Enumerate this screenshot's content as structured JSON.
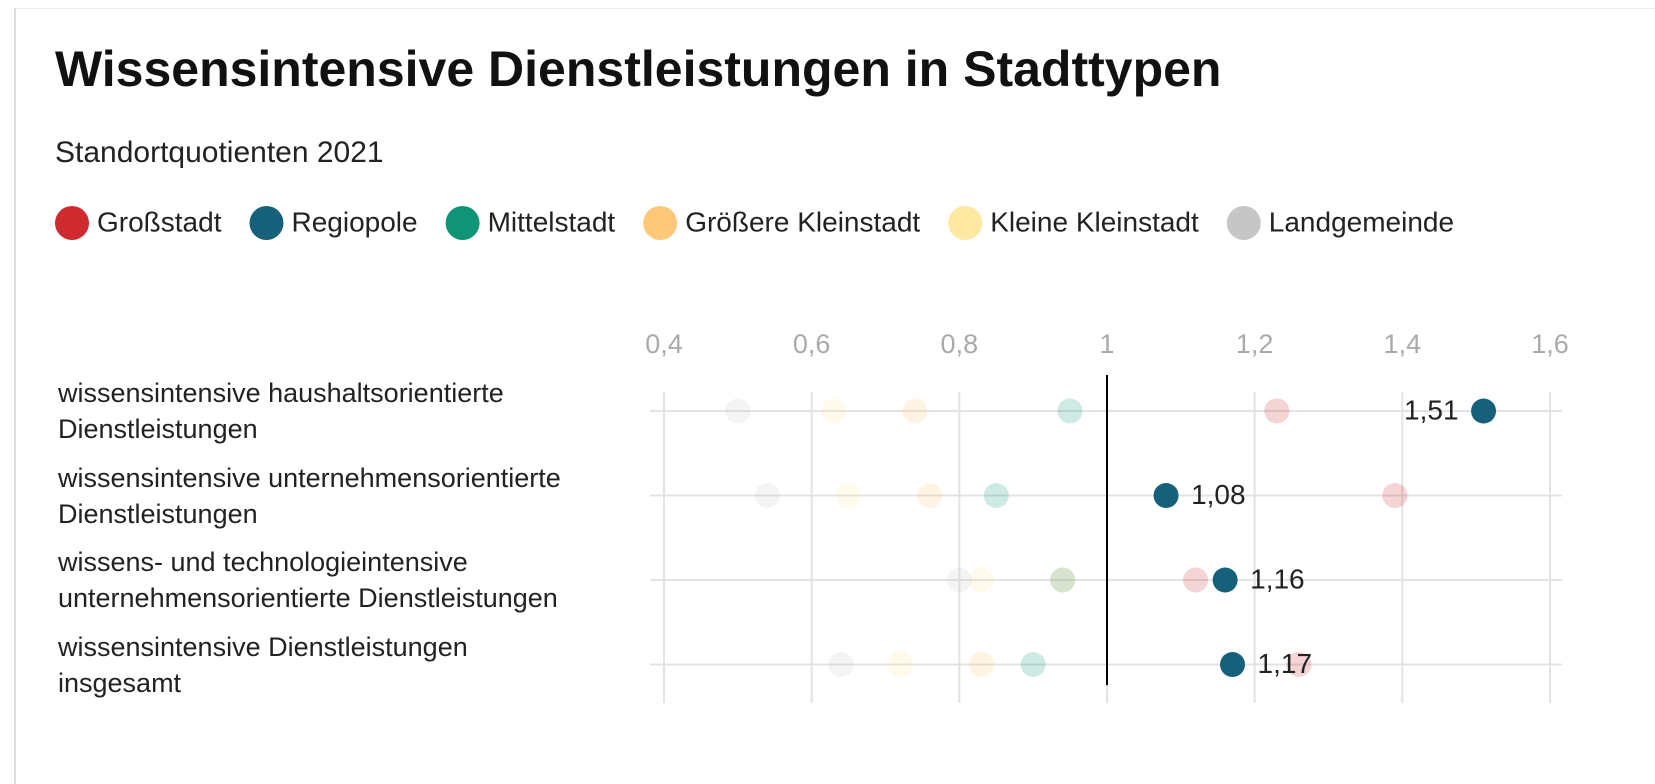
{
  "chart_data": {
    "type": "dot",
    "title": "Wissensintensive Dienstleistungen in Stadttypen",
    "subtitle": "Standortquotienten 2021",
    "categories": [
      "wissensintensive haushaltsorientierte\nDienstleistungen",
      "wissensintensive unternehmensorientierte\nDienstleistungen",
      "wissens- und technologieintensive\nunternehmensorientierte Dienstleistungen",
      "wissensintensive Dienstleistungen\ninsgesamt"
    ],
    "series": [
      {
        "name": "Großstadt",
        "color": "#cf2a2e",
        "opacity": 0.2,
        "values": [
          1.23,
          1.39,
          1.12,
          1.26
        ]
      },
      {
        "name": "Regiopole",
        "color": "#17607a",
        "opacity": 1,
        "values": [
          1.51,
          1.08,
          1.16,
          1.17
        ],
        "value_labels": [
          "1,51",
          "1,08",
          "1,16",
          "1,17"
        ]
      },
      {
        "name": "Mittelstadt",
        "color": "#109478",
        "opacity": 0.2,
        "values": [
          0.95,
          0.85,
          0.94,
          0.9
        ]
      },
      {
        "name": "Größere Kleinstadt",
        "color": "#fdc877",
        "opacity": 0.2,
        "values": [
          0.74,
          0.76,
          0.94,
          0.83
        ]
      },
      {
        "name": "Kleine Kleinstadt",
        "color": "#fee8a2",
        "opacity": 0.2,
        "values": [
          0.63,
          0.65,
          0.83,
          0.72
        ]
      },
      {
        "name": "Landgemeinde",
        "color": "#c6c6c6",
        "opacity": 0.2,
        "values": [
          0.5,
          0.54,
          0.8,
          0.64
        ]
      }
    ],
    "xlim": [
      0.4,
      1.6
    ],
    "xticks": [
      {
        "value": 0.4,
        "label": "0,4"
      },
      {
        "value": 0.6,
        "label": "0,6"
      },
      {
        "value": 0.8,
        "label": "0,8"
      },
      1,
      {
        "value": 1.2,
        "label": "1,2"
      },
      {
        "value": 1.4,
        "label": "1,4"
      },
      {
        "value": 1.6,
        "label": "1,6"
      }
    ],
    "reference_line": 1,
    "grid": true,
    "legend": "top"
  }
}
